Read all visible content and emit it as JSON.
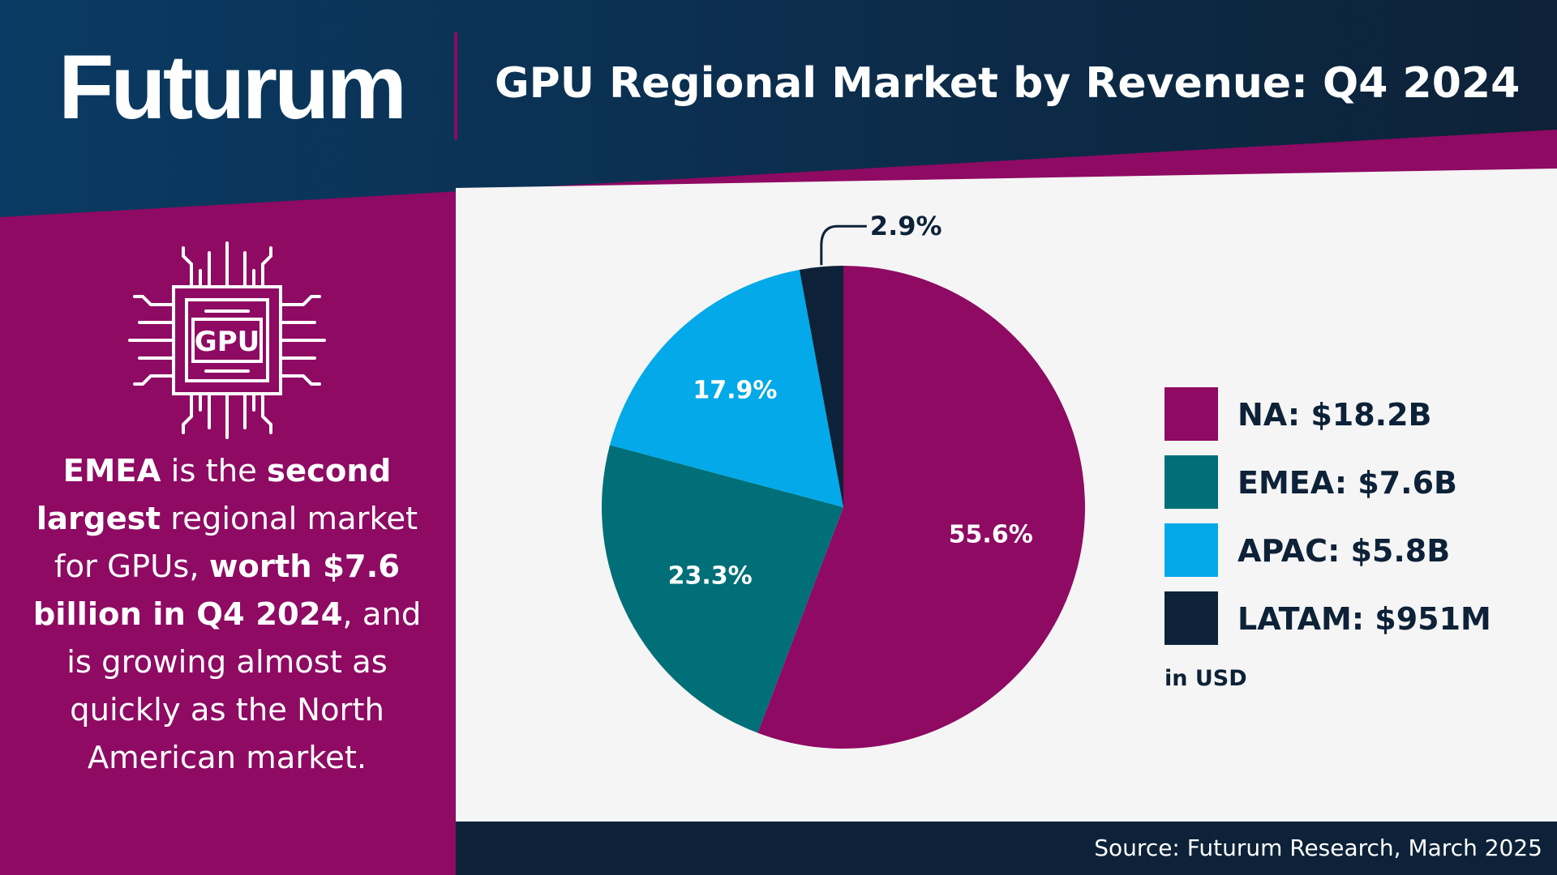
{
  "header": {
    "logo": "Futurum",
    "title": "GPU Regional Market by Revenue: Q4 2024"
  },
  "insight": {
    "parts": [
      {
        "text": "EMEA",
        "bold": true
      },
      {
        "text": " is the ",
        "bold": false
      },
      {
        "text": "second largest",
        "bold": true
      },
      {
        "text": " regional market for GPUs, ",
        "bold": false
      },
      {
        "text": "worth $7.6 billion in Q4 2024",
        "bold": true
      },
      {
        "text": ", and is growing almost as quickly as the North American market.",
        "bold": false
      }
    ]
  },
  "icon": {
    "name": "gpu-chip-icon",
    "label": "GPU"
  },
  "colors": {
    "na": "#8e0a63",
    "emea": "#016f78",
    "apac": "#03a9e8",
    "latam": "#0d2238",
    "background": "#f5f5f5",
    "header": "#0d2238"
  },
  "legend": {
    "items": [
      {
        "label": "NA: $18.2B",
        "color": "#8e0a63"
      },
      {
        "label": "EMEA: $7.6B",
        "color": "#016f78"
      },
      {
        "label": "APAC: $5.8B",
        "color": "#03a9e8"
      },
      {
        "label": "LATAM: $951M",
        "color": "#0d2238"
      }
    ],
    "unit": "in USD"
  },
  "chart_data": {
    "type": "pie",
    "title": "GPU Regional Market by Revenue: Q4 2024",
    "categories": [
      "NA",
      "EMEA",
      "APAC",
      "LATAM"
    ],
    "values": [
      55.6,
      23.3,
      17.9,
      2.9
    ],
    "value_labels": [
      "55.6%",
      "23.3%",
      "17.9%",
      "2.9%"
    ],
    "revenue_labels": [
      "$18.2B",
      "$7.6B",
      "$5.8B",
      "$951M"
    ],
    "colors": [
      "#8e0a63",
      "#016f78",
      "#03a9e8",
      "#0d2238"
    ],
    "start": "12 o'clock, clockwise",
    "legend_position": "right"
  },
  "footer": {
    "source": "Source: Futurum Research, March 2025"
  }
}
